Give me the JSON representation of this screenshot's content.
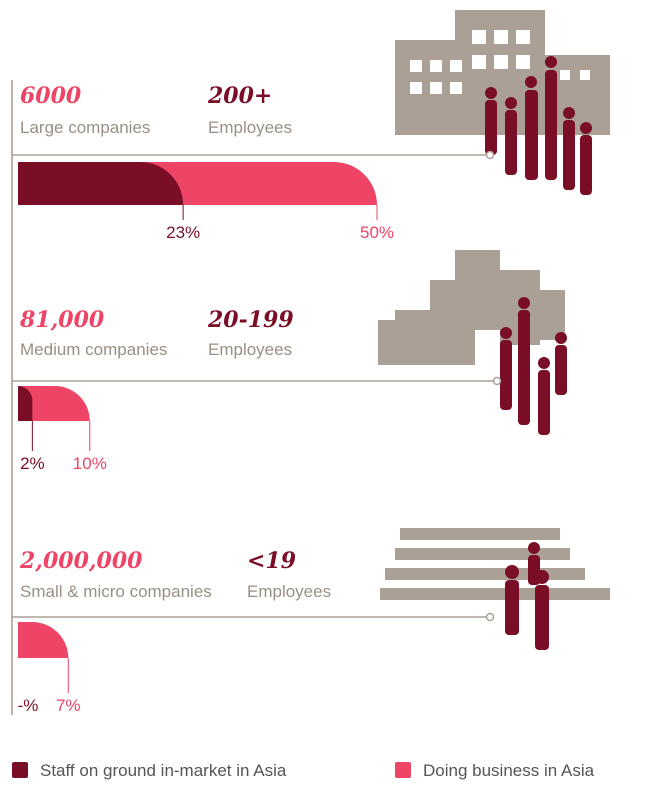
{
  "chart_data": {
    "type": "bar",
    "orientation": "horizontal",
    "groups": [
      {
        "count": "6000",
        "label": "Large companies",
        "employees": "200+",
        "employees_label": "Employees"
      },
      {
        "count": "81,000",
        "label": "Medium companies",
        "employees": "20-199",
        "employees_label": "Employees"
      },
      {
        "count": "2,000,000",
        "label": "Small & micro companies",
        "employees": "<19",
        "employees_label": "Employees"
      }
    ],
    "series": [
      {
        "name": "Staff on ground in-market in Asia",
        "color": "#7a0e26",
        "values": [
          23,
          2,
          null
        ],
        "value_labels": [
          "23%",
          "2%",
          "-%"
        ]
      },
      {
        "name": "Doing business in Asia",
        "color": "#ee4466",
        "values": [
          50,
          10,
          7
        ],
        "value_labels": [
          "50%",
          "10%",
          "7%"
        ]
      }
    ],
    "xlim": [
      0,
      50
    ]
  }
}
